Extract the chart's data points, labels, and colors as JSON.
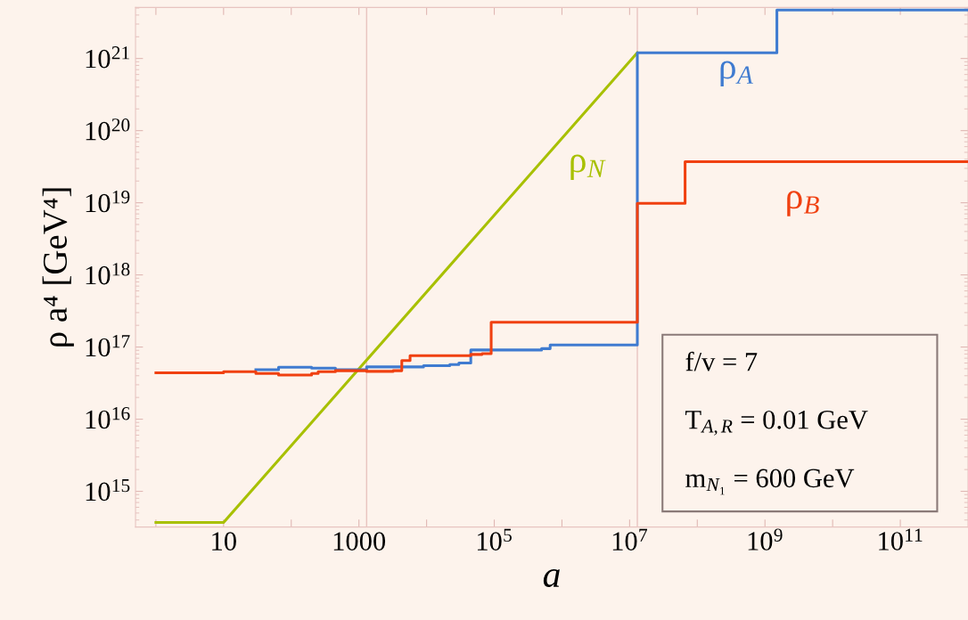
{
  "chart_data": {
    "type": "step",
    "xlabel": "a",
    "ylabel": "ρ a⁴ [GeV⁴]",
    "log": "xy",
    "grid": false,
    "xlim": [
      0.5,
      1000000000000.0
    ],
    "ylim": [
      320000000000000.0,
      5.1e+21
    ],
    "xticks": [
      {
        "value": 1,
        "label": null
      },
      10,
      {
        "value": 100,
        "label": null
      },
      1000,
      {
        "value": 10000,
        "label": null
      },
      {
        "value": 100000,
        "label": "10$^{5}$"
      },
      {
        "value": 1000000,
        "label": null
      },
      {
        "value": 10000000,
        "label": "10$^{7}$"
      },
      {
        "value": 100000000,
        "label": null
      },
      {
        "value": 1000000000,
        "label": "10$^{9}$"
      },
      {
        "value": 10000000000,
        "label": null
      },
      {
        "value": 100000000000,
        "label": "10$^{11}$"
      }
    ],
    "yticks": [
      {
        "value": 1000000000000000.0,
        "label": "10$^{15}$"
      },
      {
        "value": 1e+16,
        "label": "10$^{16}$"
      },
      {
        "value": 1e+17,
        "label": "10$^{17}$"
      },
      {
        "value": 1e+18,
        "label": "10$^{18}$"
      },
      {
        "value": 1e+19,
        "label": "10$^{19}$"
      },
      {
        "value": 1e+20,
        "label": "10$^{20}$"
      },
      {
        "value": 1e+21,
        "label": "10$^{21}$"
      }
    ],
    "series": [
      {
        "name": "ρ$_{N}$",
        "type": "line",
        "color": "#a8c000",
        "x": [
          1,
          10,
          13000000.0
        ],
        "values": [
          370000000000000.0,
          370000000000000.0,
          1.2e+21
        ]
      },
      {
        "name": "ρ$_{A}$",
        "color": "#3f7bd0",
        "x": [
          30,
          65,
          200,
          450,
          1300,
          9000,
          22000,
          30000,
          45000,
          500000,
          670000,
          13000000.0,
          1500000000.0,
          1000000000000.0
        ],
        "values": [
          4.85e+16,
          5.25e+16,
          5.1e+16,
          4.85e+16,
          5.3e+16,
          5.5e+16,
          5.7e+16,
          6e+16,
          9.1e+16,
          9.5e+16,
          1.07e+17,
          1.2e+21,
          4.7e+21,
          4.7e+21
        ]
      },
      {
        "name": "ρ$_{B}$",
        "color": "#f04010",
        "x": [
          1,
          10,
          30,
          65,
          200,
          250,
          450,
          1300,
          3200,
          4300,
          5700,
          45000,
          66000,
          90000,
          13000000.0,
          66000000.0,
          1000000000000.0
        ],
        "values": [
          4.4e+16,
          4.55e+16,
          4.3e+16,
          4.1e+16,
          4.3e+16,
          4.55e+16,
          4.7e+16,
          4.6e+16,
          4.7e+16,
          6.5e+16,
          7.6e+16,
          7.9e+16,
          8.1e+16,
          2.2e+17,
          9.8e+18,
          3.7e+19,
          3.7e+19
        ]
      }
    ],
    "ref_lines": [
      {
        "axis": "x",
        "value": 1300,
        "color": "#e8c4c0"
      },
      {
        "axis": "x",
        "value": 13000000.0,
        "color": "#e8c4c0"
      }
    ],
    "annotations": [
      "f/v = 7",
      "T$_{A,R}$ = 0.01 GeV",
      "m$_{N₁}$ = 600 GeV"
    ]
  }
}
